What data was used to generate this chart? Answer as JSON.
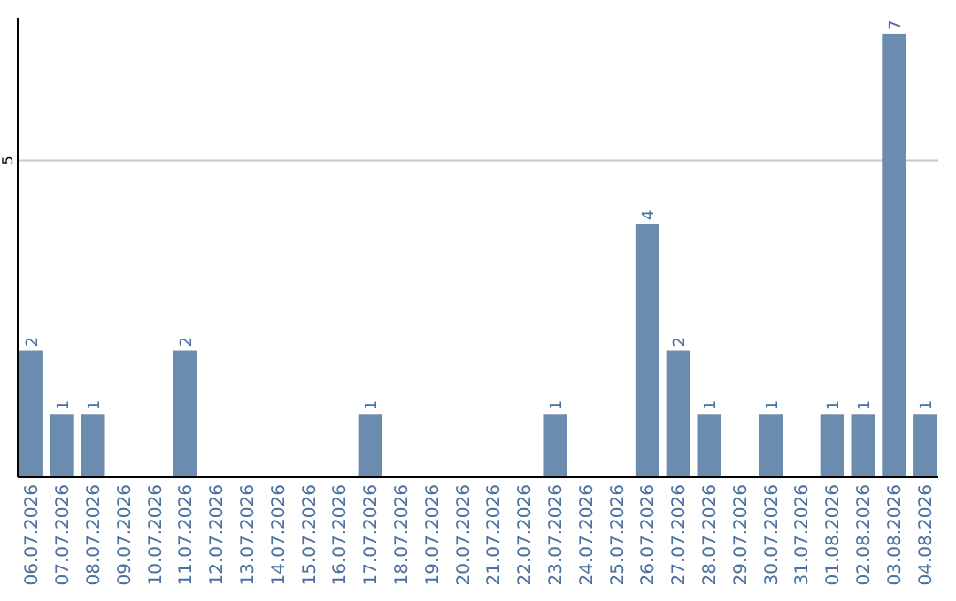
{
  "chart_data": {
    "type": "bar",
    "categories": [
      "06.07.2026",
      "07.07.2026",
      "08.07.2026",
      "09.07.2026",
      "10.07.2026",
      "11.07.2026",
      "12.07.2026",
      "13.07.2026",
      "14.07.2026",
      "15.07.2026",
      "16.07.2026",
      "17.07.2026",
      "18.07.2026",
      "19.07.2026",
      "20.07.2026",
      "21.07.2026",
      "22.07.2026",
      "23.07.2026",
      "24.07.2026",
      "25.07.2026",
      "26.07.2026",
      "27.07.2026",
      "28.07.2026",
      "29.07.2026",
      "30.07.2026",
      "31.07.2026",
      "01.08.2026",
      "02.08.2026",
      "03.08.2026",
      "04.08.2026"
    ],
    "values": [
      2,
      1,
      1,
      0,
      0,
      2,
      0,
      0,
      0,
      0,
      0,
      1,
      0,
      0,
      0,
      0,
      0,
      1,
      0,
      0,
      4,
      2,
      1,
      0,
      1,
      0,
      1,
      1,
      7,
      1
    ],
    "value_labels": [
      "2",
      "1",
      "1",
      null,
      null,
      "2",
      null,
      null,
      null,
      null,
      null,
      "1",
      null,
      null,
      null,
      null,
      null,
      "1",
      null,
      null,
      "4",
      "2",
      "1",
      null,
      "1",
      null,
      "1",
      "1",
      "7",
      "1"
    ],
    "color": "#6b8cae",
    "ylim": [
      0,
      7.25
    ],
    "yticks": [
      5
    ],
    "grid": "y"
  }
}
